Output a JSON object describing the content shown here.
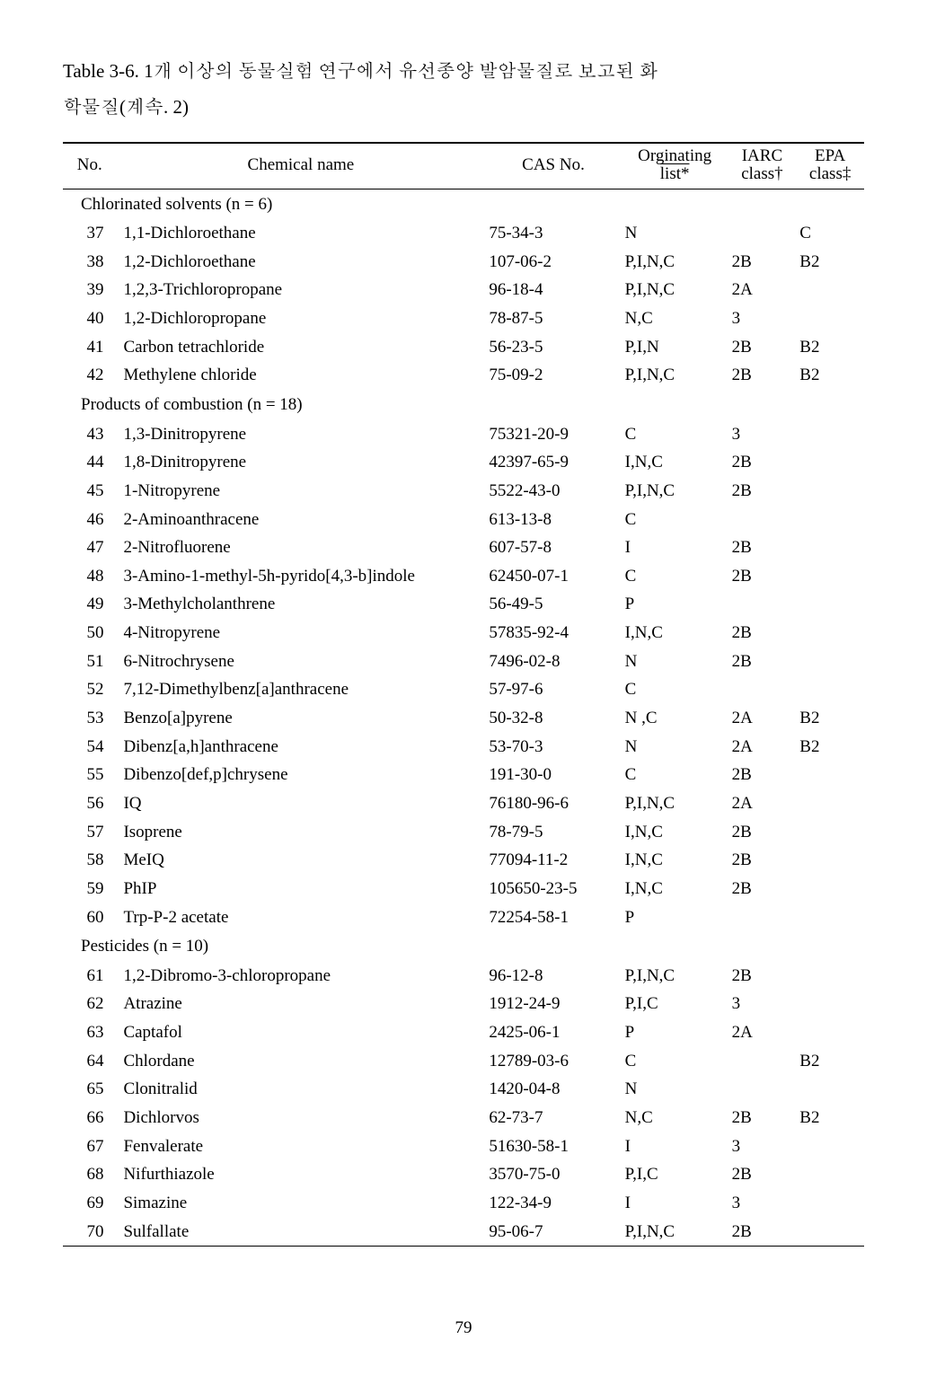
{
  "caption_line1": "Table 3-6. 1개 이상의 동물실험 연구에서 유선종양 발암물질로 보고된 화",
  "caption_line2": "학물질(계속. 2)",
  "headers": {
    "no": "No.",
    "name": "Chemical name",
    "cas": "CAS No.",
    "org_top": "Orginating",
    "org_bot": "list*",
    "iarc_top": "IARC",
    "iarc_bot": "class†",
    "epa_top": "EPA",
    "epa_bot": "class‡"
  },
  "sections": [
    {
      "label": "Chlorinated  solvents (n = 6)",
      "rows": [
        {
          "no": "37",
          "name": "1,1-Dichloroethane",
          "cas": "75-34-3",
          "org": "N",
          "iarc": "",
          "epa": "C"
        },
        {
          "no": "38",
          "name": "1,2-Dichloroethane",
          "cas": "107-06-2",
          "org": "P,I,N,C",
          "iarc": "2B",
          "epa": "B2"
        },
        {
          "no": "39",
          "name": "1,2,3-Trichloropropane",
          "cas": "96-18-4",
          "org": "P,I,N,C",
          "iarc": "2A",
          "epa": ""
        },
        {
          "no": "40",
          "name": "1,2-Dichloropropane",
          "cas": "78-87-5",
          "org": "N,C",
          "iarc": "3",
          "epa": ""
        },
        {
          "no": "41",
          "name": "Carbon tetrachloride",
          "cas": "56-23-5",
          "org": "P,I,N",
          "iarc": "2B",
          "epa": "B2"
        },
        {
          "no": "42",
          "name": "Methylene chloride",
          "cas": "75-09-2",
          "org": "P,I,N,C",
          "iarc": "2B",
          "epa": "B2"
        }
      ]
    },
    {
      "label": "Products  of combustion (n = 18)",
      "rows": [
        {
          "no": "43",
          "name": "1,3-Dinitropyrene",
          "cas": "75321-20-9",
          "org": "C",
          "iarc": "3",
          "epa": ""
        },
        {
          "no": "44",
          "name": "1,8-Dinitropyrene",
          "cas": "42397-65-9",
          "org": "I,N,C",
          "iarc": "2B",
          "epa": ""
        },
        {
          "no": "45",
          "name": "1-Nitropyrene",
          "cas": "5522-43-0",
          "org": "P,I,N,C",
          "iarc": "2B",
          "epa": ""
        },
        {
          "no": "46",
          "name": "2-Aminoanthracene",
          "cas": "613-13-8",
          "org": "C",
          "iarc": "",
          "epa": ""
        },
        {
          "no": "47",
          "name": "2-Nitrofluorene",
          "cas": "607-57-8",
          "org": "I",
          "iarc": "2B",
          "epa": ""
        },
        {
          "no": "48",
          "name": "3-Amino-1-methyl-5h-pyrido[4,3-b]indole",
          "cas": "62450-07-1",
          "org": "C",
          "iarc": "2B",
          "epa": ""
        },
        {
          "no": "49",
          "name": "3-Methylcholanthrene",
          "cas": "56-49-5",
          "org": "P",
          "iarc": "",
          "epa": ""
        },
        {
          "no": "50",
          "name": "4-Nitropyrene",
          "cas": "57835-92-4",
          "org": "I,N,C",
          "iarc": "2B",
          "epa": ""
        },
        {
          "no": "51",
          "name": "6-Nitrochrysene",
          "cas": "7496-02-8",
          "org": "N",
          "iarc": "2B",
          "epa": ""
        },
        {
          "no": "52",
          "name": "7,12-Dimethylbenz[a]anthracene",
          "cas": "57-97-6",
          "org": "C",
          "iarc": "",
          "epa": ""
        },
        {
          "no": "53",
          "name": "Benzo[a]pyrene",
          "cas": "50-32-8",
          "org": "N ,C",
          "iarc": "2A",
          "epa": "B2"
        },
        {
          "no": "54",
          "name": "Dibenz[a,h]anthracene",
          "cas": "53-70-3",
          "org": "N",
          "iarc": "2A",
          "epa": "B2"
        },
        {
          "no": "55",
          "name": "Dibenzo[def,p]chrysene",
          "cas": "191-30-0",
          "org": "C",
          "iarc": "2B",
          "epa": ""
        },
        {
          "no": "56",
          "name": "IQ",
          "cas": "76180-96-6",
          "org": "P,I,N,C",
          "iarc": "2A",
          "epa": ""
        },
        {
          "no": "57",
          "name": "Isoprene",
          "cas": "78-79-5",
          "org": "I,N,C",
          "iarc": "2B",
          "epa": ""
        },
        {
          "no": "58",
          "name": "MeIQ",
          "cas": "77094-11-2",
          "org": "I,N,C",
          "iarc": "2B",
          "epa": ""
        },
        {
          "no": "59",
          "name": "PhIP",
          "cas": "105650-23-5",
          "org": "I,N,C",
          "iarc": "2B",
          "epa": ""
        },
        {
          "no": "60",
          "name": "Trp-P-2 acetate",
          "cas": "72254-58-1",
          "org": "P",
          "iarc": "",
          "epa": ""
        }
      ]
    },
    {
      "label": "Pesticides  (n = 10)",
      "rows": [
        {
          "no": "61",
          "name": "1,2-Dibromo-3-chloropropane",
          "cas": "96-12-8",
          "org": "P,I,N,C",
          "iarc": "2B",
          "epa": ""
        },
        {
          "no": "62",
          "name": "Atrazine",
          "cas": "1912-24-9",
          "org": "P,I,C",
          "iarc": "3",
          "epa": ""
        },
        {
          "no": "63",
          "name": "Captafol",
          "cas": "2425-06-1",
          "org": "P",
          "iarc": "2A",
          "epa": ""
        },
        {
          "no": "64",
          "name": "Chlordane",
          "cas": "12789-03-6",
          "org": "C",
          "iarc": "",
          "epa": "B2"
        },
        {
          "no": "65",
          "name": "Clonitralid",
          "cas": "1420-04-8",
          "org": "N",
          "iarc": "",
          "epa": ""
        },
        {
          "no": "66",
          "name": "Dichlorvos",
          "cas": "62-73-7",
          "org": "N,C",
          "iarc": "2B",
          "epa": "B2"
        },
        {
          "no": "67",
          "name": "Fenvalerate",
          "cas": "51630-58-1",
          "org": "I",
          "iarc": "3",
          "epa": ""
        },
        {
          "no": "68",
          "name": "Nifurthiazole",
          "cas": "3570-75-0",
          "org": "P,I,C",
          "iarc": "2B",
          "epa": ""
        },
        {
          "no": "69",
          "name": "Simazine",
          "cas": "122-34-9",
          "org": "I",
          "iarc": "3",
          "epa": ""
        },
        {
          "no": "70",
          "name": "Sulfallate",
          "cas": "95-06-7",
          "org": "P,I,N,C",
          "iarc": "2B",
          "epa": ""
        }
      ]
    }
  ],
  "page_number": "79"
}
